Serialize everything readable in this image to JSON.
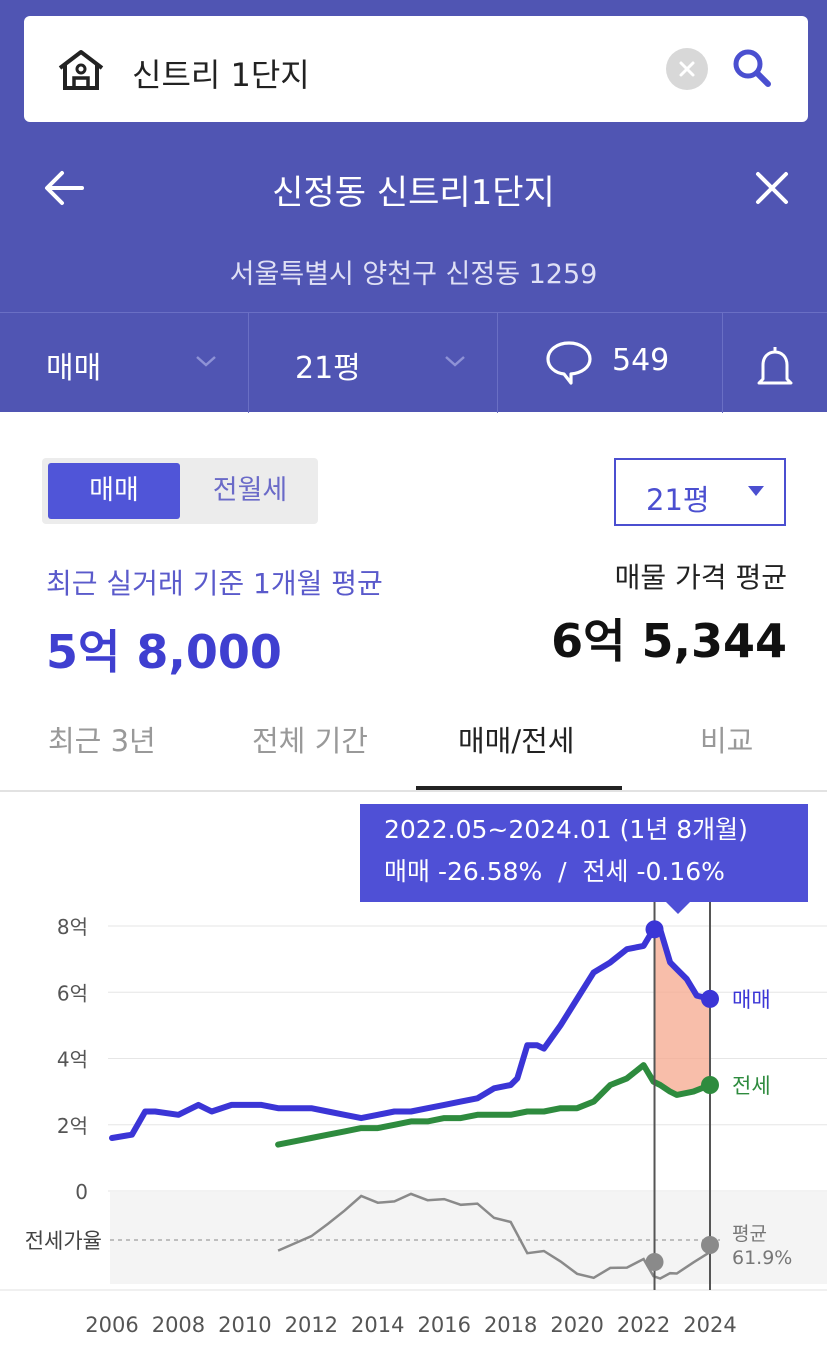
{
  "search": {
    "query": "신트리 1단지"
  },
  "header": {
    "title": "신정동 신트리1단지",
    "address": "서울특별시 양천구 신정동 1259"
  },
  "filter": {
    "trade_type": "매매",
    "size": "21평",
    "comment_count": "549"
  },
  "toggle": {
    "active": "매매",
    "inactive": "전월세"
  },
  "size_select": {
    "value": "21평"
  },
  "prices": {
    "recent_label": "최근 실거래 기준 1개월 평균",
    "recent_value": "5억 8,000",
    "listing_label": "매물 가격 평균",
    "listing_value": "6억 5,344"
  },
  "tabs": [
    {
      "label": "최근 3년",
      "active": false
    },
    {
      "label": "전체 기간",
      "active": false
    },
    {
      "label": "매매/전세",
      "active": true
    },
    {
      "label": "비교",
      "active": false
    }
  ],
  "tooltip": {
    "line1": "2022.05~2024.01 (1년 8개월)",
    "line2": "매매 -26.58%  /  전세 -0.16%"
  },
  "colors": {
    "brand": "#5055b3",
    "sale": "#3b35d6",
    "jeonse": "#2e8b3e",
    "ratio": "#8a8a8a",
    "shade": "#f5a88e"
  },
  "chart_data": {
    "type": "line",
    "x_ticks": [
      "2006",
      "2008",
      "2010",
      "2012",
      "2014",
      "2016",
      "2018",
      "2020",
      "2022",
      "2024"
    ],
    "y_ticks": [
      "8억",
      "6억",
      "4억",
      "2억",
      "0"
    ],
    "ylim": [
      0,
      8
    ],
    "y_unit": "억",
    "ratio_axis_label": "전세가율",
    "ratio_avg_label": "평균",
    "ratio_avg_value": "61.9%",
    "highlight_range": [
      "2022.05",
      "2024.01"
    ],
    "series": [
      {
        "name": "매매",
        "x": [
          2006.0,
          2006.6,
          2007.0,
          2007.3,
          2008.0,
          2008.6,
          2009.0,
          2009.6,
          2010.0,
          2010.5,
          2011.0,
          2011.5,
          2012.0,
          2012.5,
          2013.0,
          2013.5,
          2014.0,
          2014.5,
          2015.0,
          2015.5,
          2016.0,
          2016.5,
          2017.0,
          2017.5,
          2018.0,
          2018.2,
          2018.5,
          2018.8,
          2019.0,
          2019.5,
          2020.0,
          2020.5,
          2021.0,
          2021.5,
          2022.0,
          2022.3,
          2022.5,
          2022.8,
          2023.0,
          2023.3,
          2023.6,
          2024.0
        ],
        "values": [
          1.6,
          1.7,
          2.4,
          2.4,
          2.3,
          2.6,
          2.4,
          2.6,
          2.6,
          2.6,
          2.5,
          2.5,
          2.5,
          2.4,
          2.3,
          2.2,
          2.3,
          2.4,
          2.4,
          2.5,
          2.6,
          2.7,
          2.8,
          3.1,
          3.2,
          3.4,
          4.4,
          4.4,
          4.3,
          5.0,
          5.8,
          6.6,
          6.9,
          7.3,
          7.4,
          7.9,
          7.9,
          6.9,
          6.7,
          6.4,
          5.9,
          5.8
        ]
      },
      {
        "name": "전세",
        "x": [
          2011.0,
          2011.5,
          2012.0,
          2012.5,
          2013.0,
          2013.5,
          2014.0,
          2014.5,
          2015.0,
          2015.5,
          2016.0,
          2016.5,
          2017.0,
          2017.5,
          2018.0,
          2018.5,
          2019.0,
          2019.5,
          2020.0,
          2020.5,
          2021.0,
          2021.5,
          2022.0,
          2022.3,
          2022.5,
          2022.8,
          2023.0,
          2023.5,
          2024.0
        ],
        "values": [
          1.4,
          1.5,
          1.6,
          1.7,
          1.8,
          1.9,
          1.9,
          2.0,
          2.1,
          2.1,
          2.2,
          2.2,
          2.3,
          2.3,
          2.3,
          2.4,
          2.4,
          2.5,
          2.5,
          2.7,
          3.2,
          3.4,
          3.8,
          3.3,
          3.2,
          3.0,
          2.9,
          3.0,
          3.2
        ]
      }
    ]
  }
}
